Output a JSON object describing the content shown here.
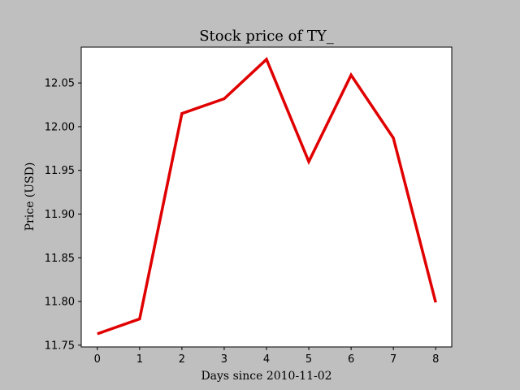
{
  "chart_data": {
    "type": "line",
    "title": "Stock price of TY_",
    "xlabel": "Days since 2010-11-02",
    "ylabel": "Price (USD)",
    "x": [
      0,
      1,
      2,
      3,
      4,
      5,
      6,
      7,
      8
    ],
    "series": [
      {
        "values": [
          11.763,
          11.78,
          12.015,
          12.032,
          12.077,
          11.96,
          12.059,
          11.987,
          11.799
        ],
        "color": "#e00000"
      }
    ],
    "xlim": [
      -0.38,
      8.38
    ],
    "ylim": [
      11.748,
      12.091
    ],
    "xticks": [
      0,
      1,
      2,
      3,
      4,
      5,
      6,
      7,
      8
    ],
    "yticks": [
      11.75,
      11.8,
      11.85,
      11.9,
      11.95,
      12.0,
      12.05
    ],
    "ytick_labels": [
      "11.75",
      "11.80",
      "11.85",
      "11.90",
      "11.95",
      "12.00",
      "12.05"
    ],
    "grid": false,
    "legend": false,
    "background_color": "#bfbfbf",
    "plot_background_color": "#ffffff"
  }
}
